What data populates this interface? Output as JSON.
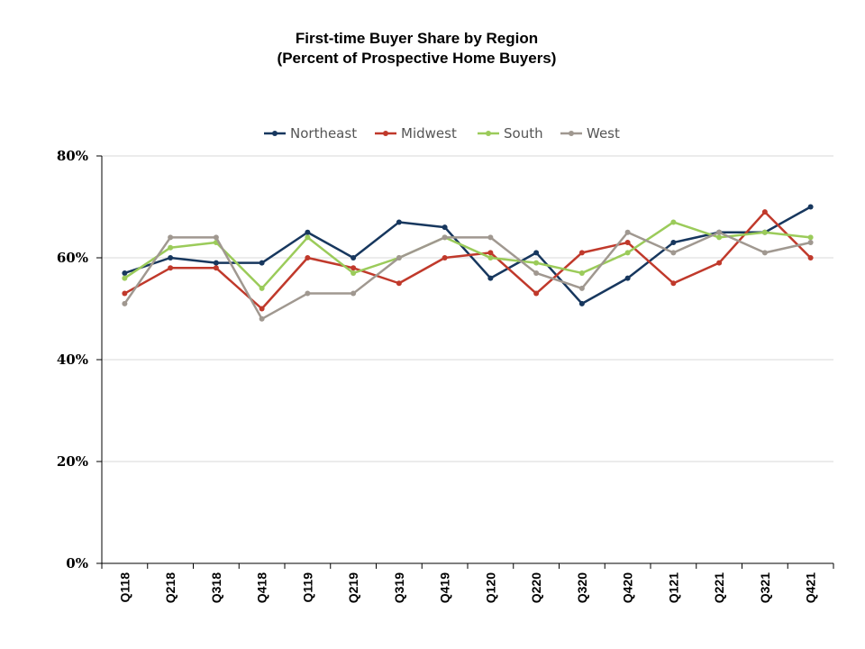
{
  "chart_data": {
    "type": "line",
    "title": "First-time Buyer Share by Region",
    "subtitle": "(Percent of Prospective Home Buyers)",
    "categories": [
      "Q118",
      "Q218",
      "Q318",
      "Q418",
      "Q119",
      "Q219",
      "Q319",
      "Q419",
      "Q120",
      "Q220",
      "Q320",
      "Q420",
      "Q121",
      "Q221",
      "Q321",
      "Q421"
    ],
    "y_ticks": [
      "0%",
      "20%",
      "40%",
      "60%",
      "80%"
    ],
    "ylim": [
      0,
      80
    ],
    "y_unit": "%",
    "grid": true,
    "legend_position": "top-center",
    "series": [
      {
        "name": "Northeast",
        "color": "#17375e",
        "values": [
          57,
          60,
          59,
          59,
          65,
          60,
          67,
          66,
          56,
          61,
          51,
          56,
          63,
          65,
          65,
          70
        ]
      },
      {
        "name": "Midwest",
        "color": "#c0392b",
        "values": [
          53,
          58,
          58,
          50,
          60,
          58,
          55,
          60,
          61,
          53,
          61,
          63,
          55,
          59,
          69,
          60
        ]
      },
      {
        "name": "South",
        "color": "#9bcb5a",
        "values": [
          56,
          62,
          63,
          54,
          64,
          57,
          60,
          64,
          60,
          59,
          57,
          61,
          67,
          64,
          65,
          64
        ]
      },
      {
        "name": "West",
        "color": "#a09890",
        "values": [
          51,
          64,
          64,
          48,
          53,
          53,
          60,
          64,
          64,
          57,
          54,
          65,
          61,
          65,
          61,
          63
        ]
      }
    ]
  }
}
